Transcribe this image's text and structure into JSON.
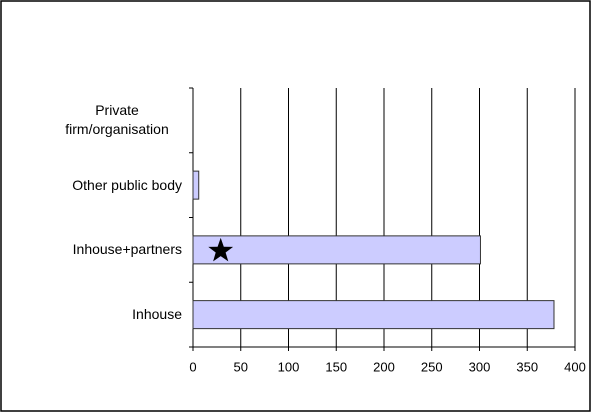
{
  "chart_data": {
    "type": "hbar",
    "categories": [
      "Private firm/organisation",
      "Other public body",
      "Inhouse+partners",
      "Inhouse"
    ],
    "values": [
      0,
      6,
      301,
      378
    ],
    "color": "#ccccff",
    "xlim": [
      0,
      400
    ],
    "xticks": [
      0,
      50,
      100,
      150,
      200,
      250,
      300,
      350,
      400
    ],
    "grid": true,
    "star": {
      "category": 2,
      "value": 29
    }
  }
}
